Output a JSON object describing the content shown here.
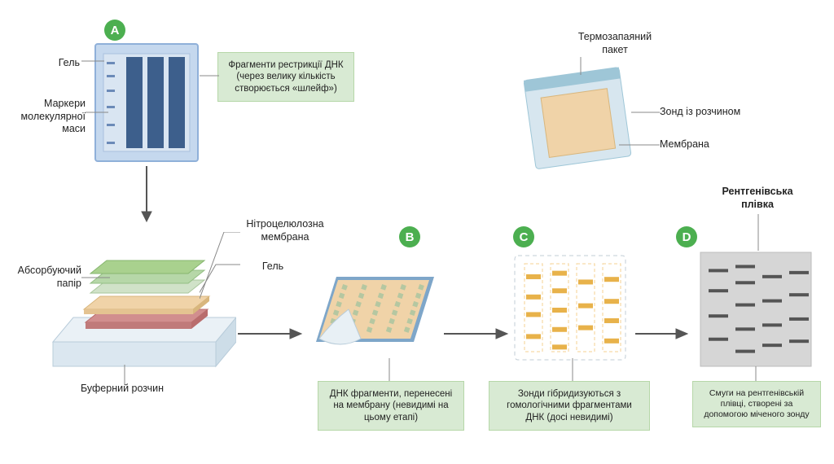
{
  "badges": {
    "a": "A",
    "b": "B",
    "c": "C",
    "d": "D"
  },
  "labels": {
    "gel": "Гель",
    "markers": "Маркери\nмолекулярної\nмаси",
    "heatsealed": "Термозапаяний\nпакет",
    "probe_solution": "Зонд із розчином",
    "membrane_bag": "Мембрана",
    "xray_film": "Рентгенівська\nплівка",
    "absorbent_paper": "Абсорбуючий\nпапір",
    "buffer": "Буферний розчин",
    "nitrocellulose": "Нітроцелюлозна\nмембрана",
    "gel_stack": "Гель"
  },
  "captions": {
    "a": "Фрагменти рестрикції ДНК (через велику кількість створюється «шлейф»)",
    "b": "ДНК фрагменти, перенесені на мембрану (невидимі на цьому етапі)",
    "c": "Зонди гібридизуються з гомологічними фрагментами ДНК (досі невидимі)",
    "d": "Смуги на рентгенівській плівці, створені за допомогою міченого зонду"
  },
  "colors": {
    "badge": "#4caf50",
    "caption_bg": "#d8ead3",
    "gel_body": "#c5d8ee",
    "gel_border": "#8fb0d9",
    "gel_lane": "#3d5f8c",
    "marker_tick": "#6b8ab8",
    "stack_paper": "#a9d18e",
    "stack_membrane": "#f0d3a8",
    "stack_gel": "#d18e8e",
    "tray_glass": "#dbe7f0",
    "membrane_face": "#f0d3a8",
    "membrane_edge": "#7ea6c9",
    "membrane_dashes": "#b5c7a1",
    "bag_body": "#d7e6ef",
    "bag_membrane": "#f0d3a8",
    "bag_seal": "#9ec6d7",
    "panel_c_border": "#c2cdd6",
    "panel_c_lane": "#f4d091",
    "panel_c_band": "#e8b24a",
    "panel_d_fill": "#d6d6d6",
    "panel_d_band": "#555555",
    "arrow": "#555555"
  },
  "panelA": {
    "lanes": 3,
    "marker_ticks": 6
  },
  "panelC": {
    "lanes": 4,
    "bands": [
      [
        12,
        35,
        55,
        80
      ],
      [
        8,
        28,
        50,
        72,
        92
      ],
      [
        18,
        45,
        70
      ],
      [
        15,
        40,
        62,
        85
      ]
    ]
  },
  "panelD": {
    "lanes": 4,
    "bands": [
      [
        10,
        30,
        55,
        78
      ],
      [
        6,
        22,
        44,
        68,
        90
      ],
      [
        16,
        40,
        64,
        84
      ],
      [
        12,
        34,
        58,
        80
      ]
    ]
  }
}
